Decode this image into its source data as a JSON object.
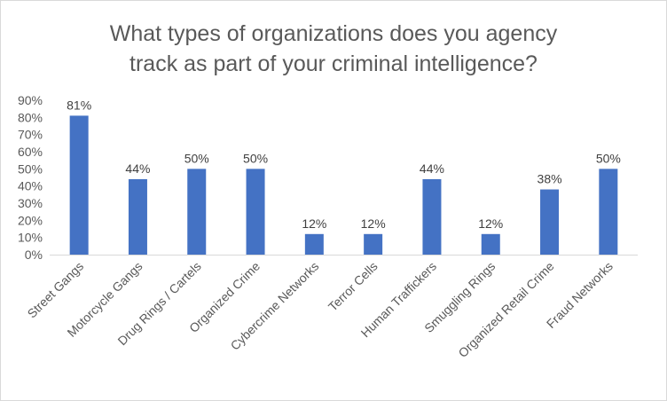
{
  "chart_data": {
    "type": "bar",
    "title": "What types of organizations does you agency track as part of your criminal intelligence?",
    "title_lines": [
      "What types of organizations does you agency",
      "track as part of your criminal intelligence?"
    ],
    "xlabel": "",
    "ylabel": "",
    "ylim": [
      0,
      90
    ],
    "yticks": [
      "0%",
      "10%",
      "20%",
      "30%",
      "40%",
      "50%",
      "60%",
      "70%",
      "80%",
      "90%"
    ],
    "grid": false,
    "legend": "none",
    "bar_color": "#4472c4",
    "categories": [
      "Street Gangs",
      "Motorcycle Gangs",
      "Drug Rings / Cartels",
      "Organized Crime",
      "Cybercrime Networks",
      "Terror Cells",
      "Human Traffickers",
      "Smuggling Rings",
      "Organized Retail Crime",
      "Fraud Networks"
    ],
    "values": [
      81,
      44,
      50,
      50,
      12,
      12,
      44,
      12,
      38,
      50
    ],
    "data_labels": [
      "81%",
      "44%",
      "50%",
      "50%",
      "12%",
      "12%",
      "44%",
      "12%",
      "38%",
      "50%"
    ]
  }
}
